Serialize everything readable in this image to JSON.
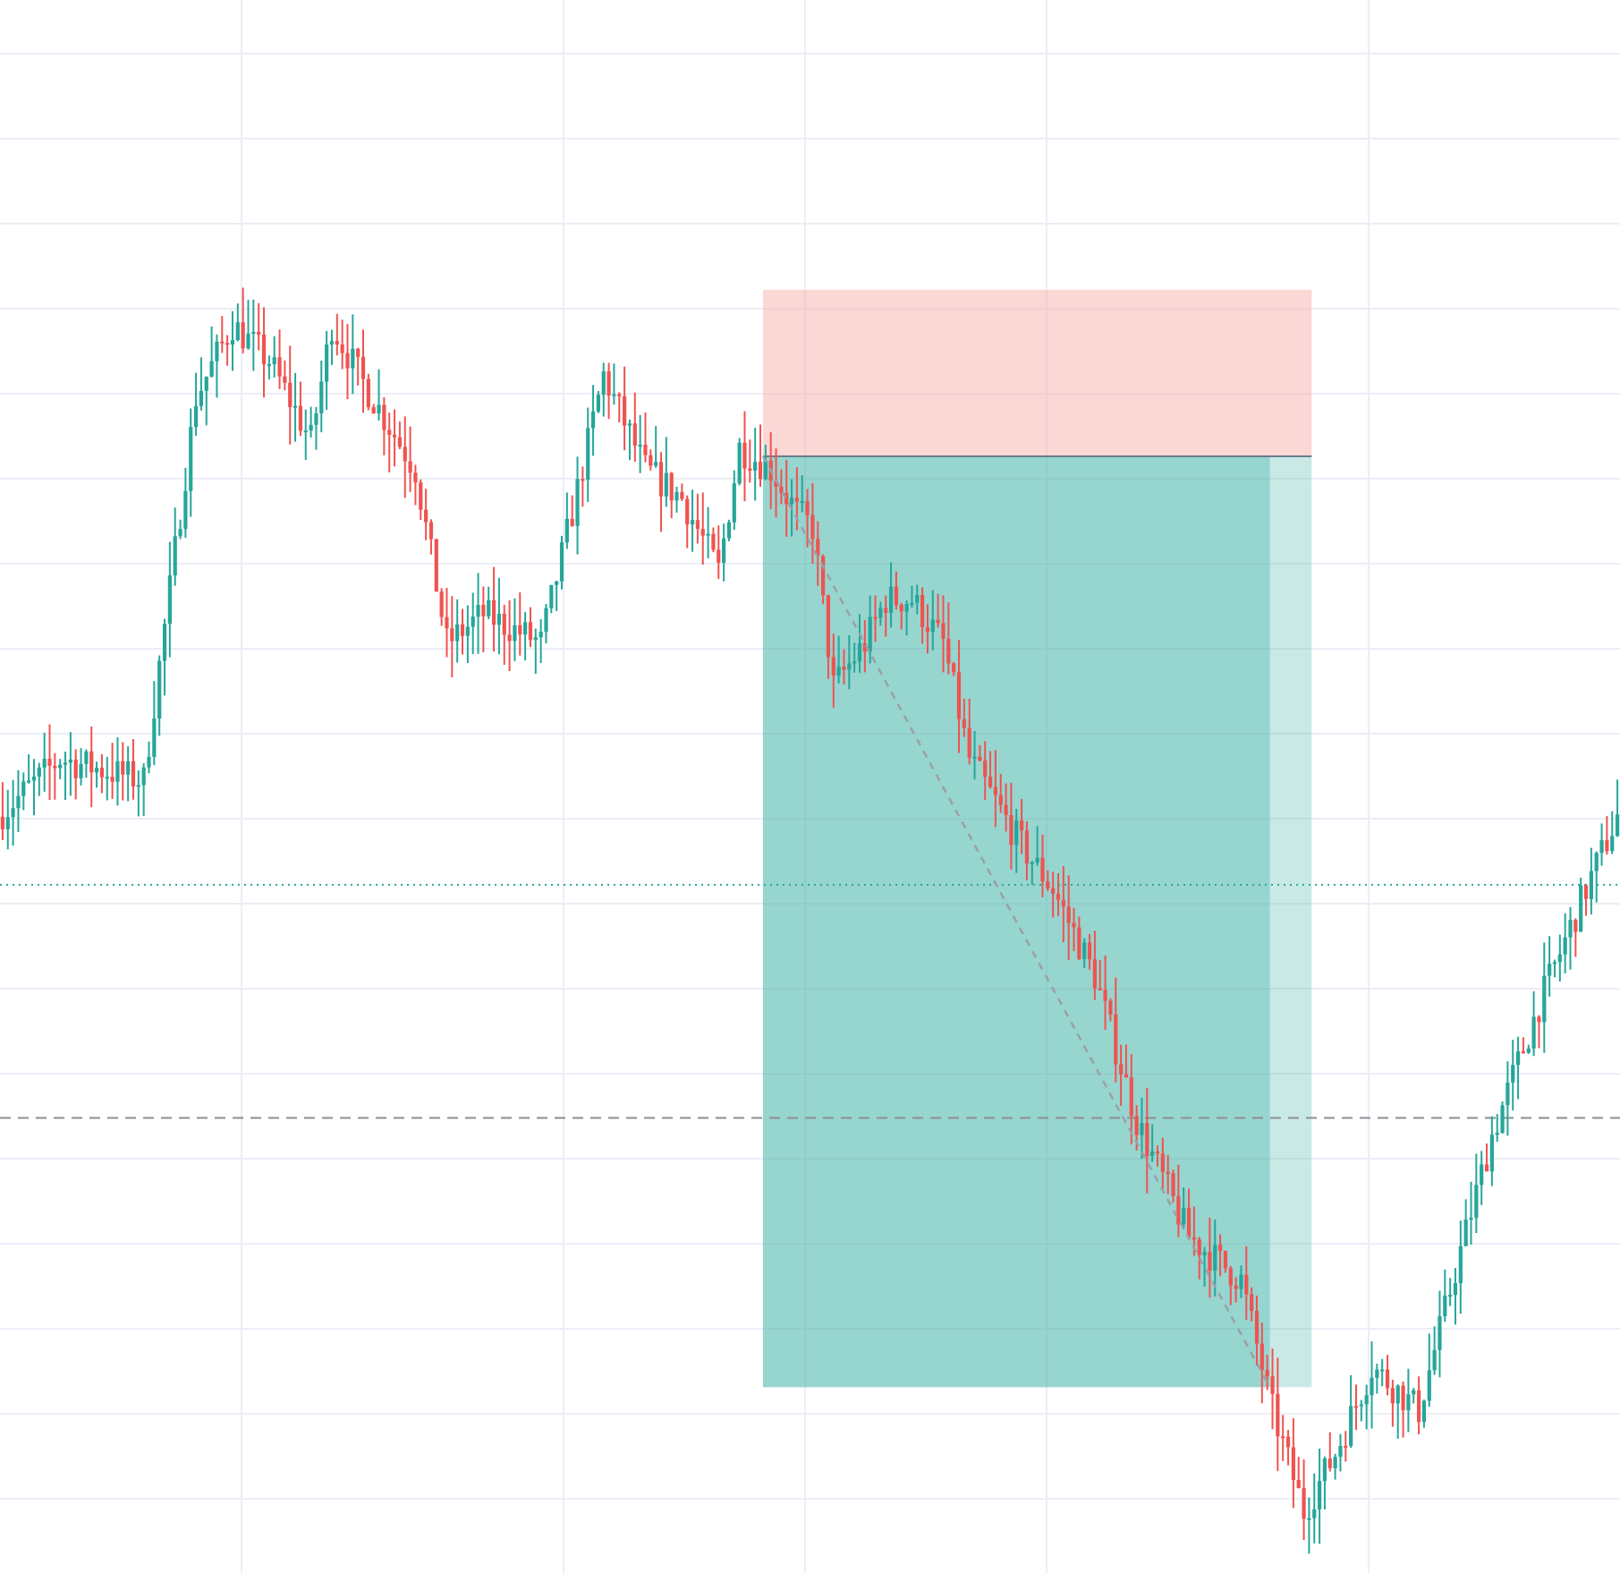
{
  "colors": {
    "background": "#ffffff",
    "grid": "#eceef6",
    "up": "#26a69a",
    "down": "#ef5350",
    "stop_zone": "#f7b7b2",
    "target_zone": "#4db6ac",
    "entry_line": "#6b7d8a",
    "trajectory": "#9aa0a8",
    "reference_line": "#26a69a",
    "dashed_line": "#8a9096"
  },
  "chart_data": {
    "type": "candlestick",
    "title": "",
    "xlabel": "",
    "ylabel": "",
    "axes_labels_visible": false,
    "grid": true,
    "legend": "none",
    "x_range": [
      0,
      310
    ],
    "ylim": [
      0,
      100
    ],
    "candle_count": 310,
    "path_anchors": [
      [
        0,
        51
      ],
      [
        12,
        55
      ],
      [
        28,
        53.5
      ],
      [
        38,
        80
      ],
      [
        45,
        85
      ],
      [
        52,
        82.5
      ],
      [
        60,
        77
      ],
      [
        64,
        85
      ],
      [
        70,
        81
      ],
      [
        80,
        75
      ],
      [
        86,
        63
      ],
      [
        93,
        65
      ],
      [
        104,
        63
      ],
      [
        110,
        72
      ],
      [
        116,
        81.5
      ],
      [
        124,
        75
      ],
      [
        131,
        73
      ],
      [
        138,
        68
      ],
      [
        142,
        76.5
      ],
      [
        148,
        75
      ],
      [
        153,
        72
      ],
      [
        156,
        71
      ],
      [
        160,
        60
      ],
      [
        166,
        63
      ],
      [
        170,
        66
      ],
      [
        175,
        66
      ],
      [
        181,
        63
      ],
      [
        186,
        55
      ],
      [
        196,
        49
      ],
      [
        202,
        46
      ],
      [
        210,
        40
      ],
      [
        218,
        30
      ],
      [
        228,
        22
      ],
      [
        238,
        19
      ],
      [
        244,
        10
      ],
      [
        250,
        3
      ],
      [
        256,
        7
      ],
      [
        263,
        13
      ],
      [
        272,
        10
      ],
      [
        280,
        21
      ],
      [
        286,
        29
      ],
      [
        295,
        38
      ],
      [
        304,
        46
      ],
      [
        310,
        51
      ]
    ],
    "position_tool": {
      "side": "short",
      "entry": 75.9,
      "stop_loss": 87.4,
      "take_profit": 11.6,
      "start_index": 146,
      "end_index": 251
    },
    "filled_region_end_index": 243,
    "trajectory": {
      "from": [
        146,
        75.9
      ],
      "to": [
        243,
        11.6
      ]
    },
    "reference_line": {
      "y": 46.3,
      "style": "dotted"
    },
    "dashed_line": {
      "y": 30.2,
      "style": "dashed"
    }
  }
}
